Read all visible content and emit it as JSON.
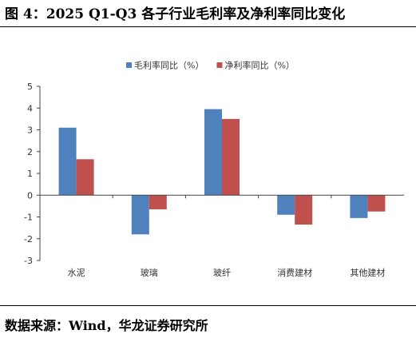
{
  "figure": {
    "title": "图 4：2025 Q1-Q3 各子行业毛利率及净利率同比变化",
    "source": "数据来源：Wind，华龙证券研究所"
  },
  "chart_data": {
    "type": "bar",
    "title": "",
    "xlabel": "",
    "ylabel": "",
    "categories": [
      "水泥",
      "玻璃",
      "玻纤",
      "消费建材",
      "其他建材"
    ],
    "series": [
      {
        "name": "毛利率同比（%）",
        "color": "#4f81bd",
        "values": [
          3.1,
          -1.8,
          3.95,
          -0.9,
          -1.05
        ]
      },
      {
        "name": "净利率同比（%）",
        "color": "#c0504d",
        "values": [
          1.65,
          -0.65,
          3.5,
          -1.35,
          -0.75
        ]
      }
    ],
    "ylim": [
      -3,
      5
    ],
    "yticks": [
      -3,
      -2,
      -1,
      0,
      1,
      2,
      3,
      4,
      5
    ],
    "grid": false,
    "legend": "top-center"
  }
}
